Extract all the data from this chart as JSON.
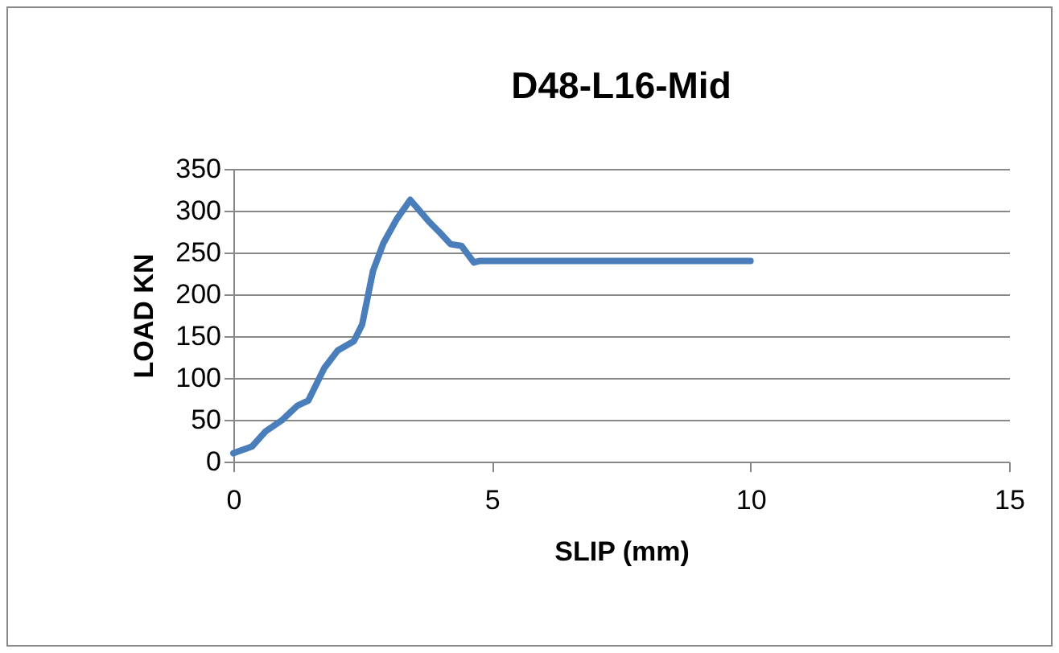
{
  "chart_data": {
    "type": "line",
    "title": "D48-L16-Mid",
    "xlabel": "SLIP (mm)",
    "ylabel": "LOAD KN",
    "x": [
      0,
      0.36,
      0.62,
      0.93,
      1.24,
      1.45,
      1.76,
      2.02,
      2.33,
      2.49,
      2.7,
      2.9,
      3.16,
      3.42,
      3.78,
      3.99,
      4.2,
      4.41,
      4.65,
      4.77,
      10
    ],
    "series": [
      {
        "color": "#4a7ebb",
        "values": [
          10,
          18,
          36,
          49,
          67,
          73,
          112,
          133,
          144,
          164,
          228,
          261,
          290,
          313,
          287,
          274,
          260,
          258,
          238,
          240,
          240
        ]
      }
    ],
    "xlim": [
      0,
      15
    ],
    "xticks": [
      0,
      5,
      10,
      15
    ],
    "ylim": [
      0,
      350
    ],
    "yticks": [
      0,
      50,
      100,
      150,
      200,
      250,
      300,
      350
    ],
    "grid": "y",
    "legend": false,
    "marker": "none",
    "line_style": "solid"
  }
}
